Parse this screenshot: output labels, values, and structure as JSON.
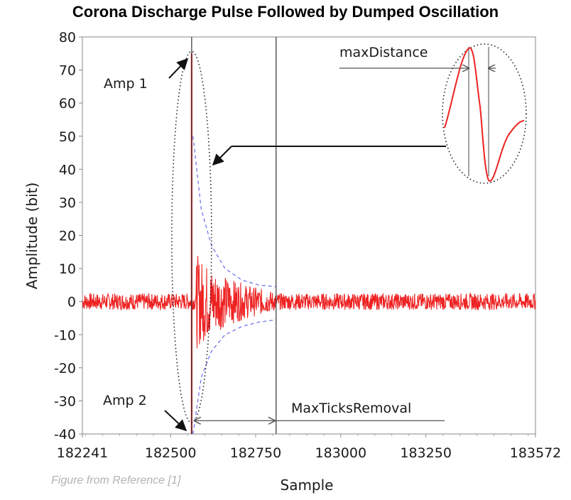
{
  "chart_data": {
    "type": "line",
    "title": "Corona Discharge Pulse Followed by Dumped Oscillation",
    "xlabel": "Sample",
    "ylabel": "Amplitude (bit)",
    "xlim": [
      182241,
      183572
    ],
    "ylim": [
      -40,
      80
    ],
    "x_ticks": [
      182241,
      182500,
      182750,
      183000,
      183250,
      183572
    ],
    "y_ticks": [
      -40,
      -30,
      -20,
      -10,
      0,
      10,
      20,
      30,
      40,
      50,
      60,
      70,
      80
    ],
    "series": [
      {
        "role": "signal",
        "color": "#ee2222",
        "pulse": {
          "x": 182562,
          "max": 75,
          "min": -40
        },
        "noise_amplitude": 2.5,
        "oscillation": {
          "start": 182575,
          "end": 182810,
          "decay_from": 12,
          "decay_to": 4
        }
      },
      {
        "role": "envelope",
        "color": "#7b7fe8",
        "x": [
          182566,
          182590,
          182620,
          182660,
          182710,
          182760,
          182810
        ],
        "upper": [
          50,
          28,
          17,
          10,
          6.5,
          5,
          4.5
        ],
        "lower": [
          -40,
          -23,
          -15,
          -10,
          -7.5,
          -6.2,
          -5.5
        ]
      }
    ],
    "markers": {
      "pulse_x": 182562,
      "removal_end_x": 182810
    },
    "annotations": [
      {
        "text": "Amp 1",
        "target": [
          182562,
          75
        ]
      },
      {
        "text": "Amp 2",
        "target": [
          182562,
          -40
        ]
      },
      {
        "text": "MaxTicksRemoval",
        "from": 182566,
        "to": 182810,
        "y": -36
      },
      {
        "text": "maxDistance"
      }
    ],
    "grid": false,
    "legend": "none"
  },
  "source_note": "Figure from Reference [1]"
}
